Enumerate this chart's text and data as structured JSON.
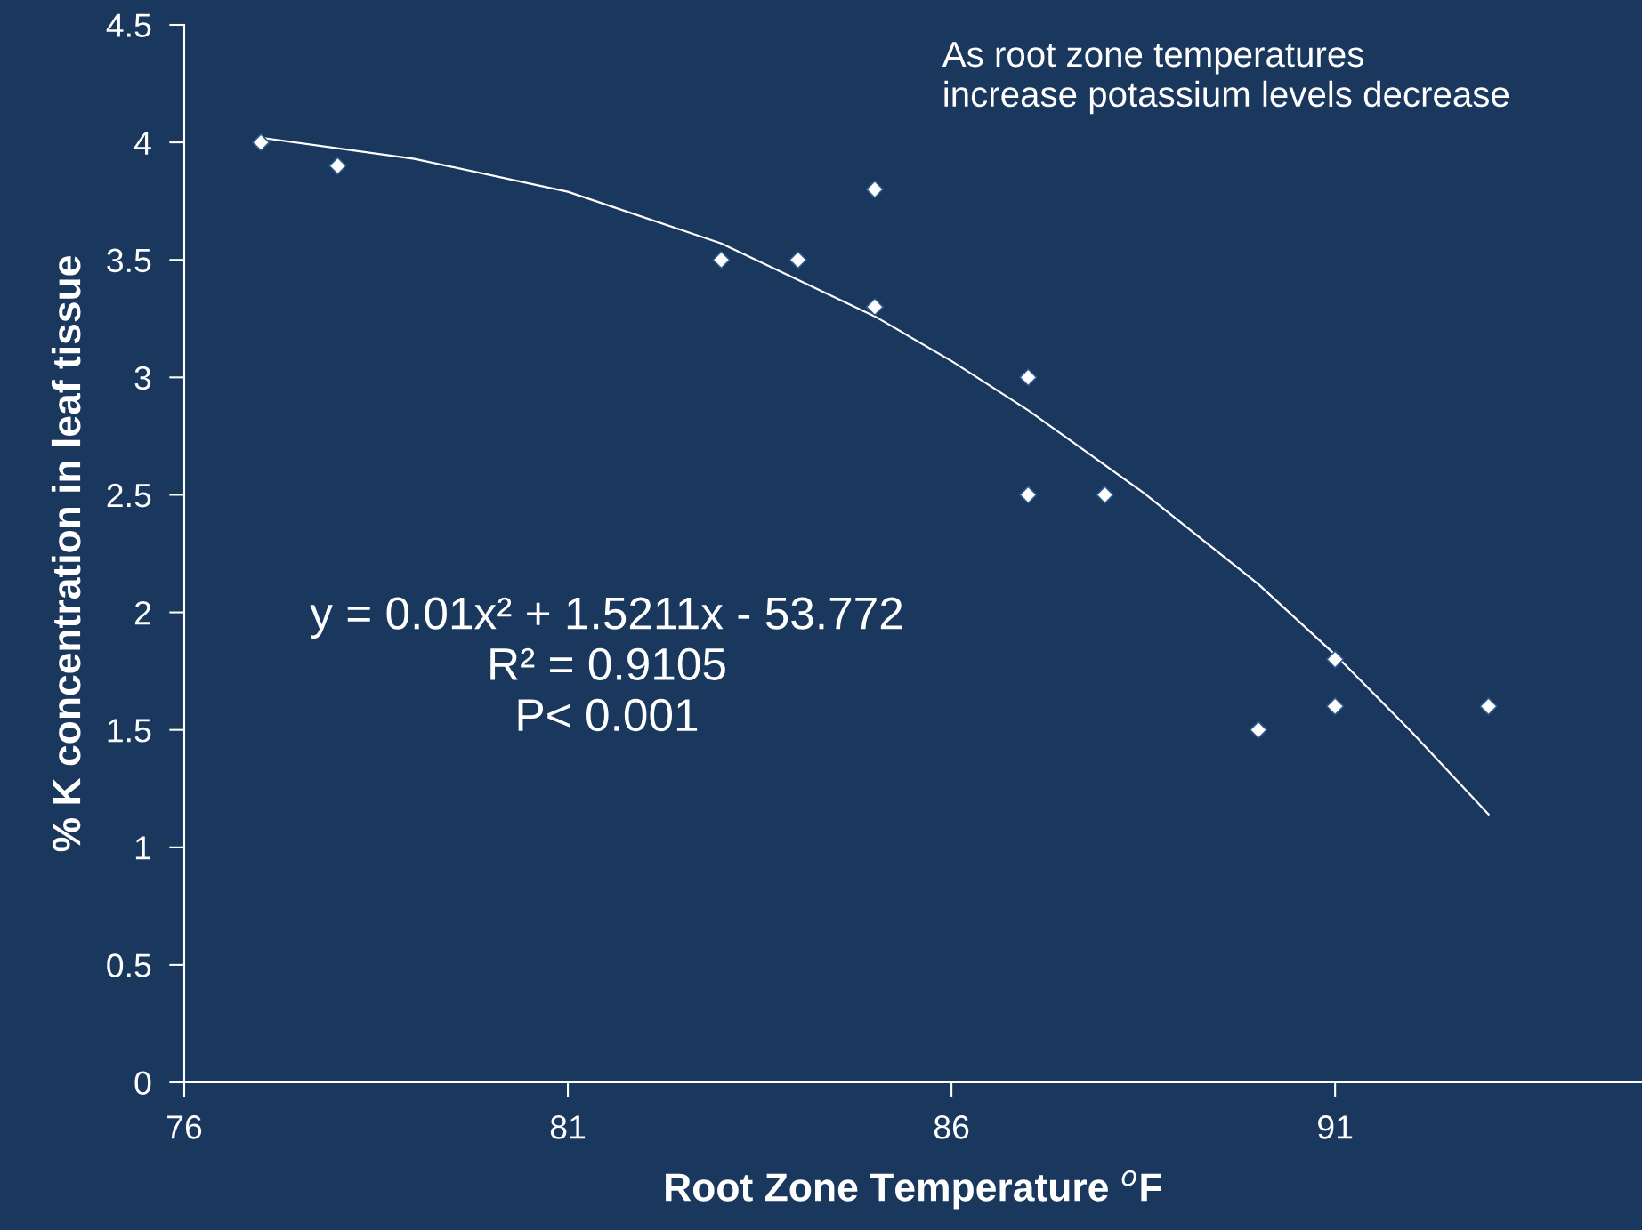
{
  "chart_data": {
    "type": "scatter",
    "xlabel": "Root Zone Temperature $^{o}$F",
    "ylabel": "% K concentration in leaf tissue",
    "series": [
      {
        "color": "#ffffff",
        "marker": "diamond",
        "x": [
          77,
          78,
          83,
          84,
          85,
          85,
          87,
          87,
          88,
          90,
          91,
          91,
          93
        ],
        "values": [
          4.0,
          3.9,
          3.5,
          3.5,
          3.8,
          3.3,
          3.0,
          2.5,
          2.5,
          1.5,
          1.8,
          1.6,
          1.6
        ]
      },
      {
        "type": "line",
        "color": "#ffffff",
        "marker": "none",
        "line_style": "solid",
        "x": [
          77,
          79,
          81,
          83,
          85,
          86,
          87,
          88.5,
          90,
          91,
          92,
          93
        ],
        "values": [
          4.02,
          3.93,
          3.79,
          3.57,
          3.26,
          3.07,
          2.86,
          2.51,
          2.12,
          1.82,
          1.49,
          1.14
        ]
      }
    ],
    "xlim": [
      76,
      95
    ],
    "xticks": [
      76,
      81,
      86,
      91
    ],
    "ylim": [
      0,
      4.5
    ],
    "yticks": [
      0,
      0.5,
      1,
      1.5,
      2,
      2.5,
      3,
      3.5,
      4,
      4.5
    ],
    "grid": false,
    "legend": false,
    "annotations": [
      "As root zone temperatures\nincrease potassium levels decrease",
      "y = 0.01x² + 1.5211x - 53.772\nR² = 0.9105\nP< 0.001"
    ]
  }
}
